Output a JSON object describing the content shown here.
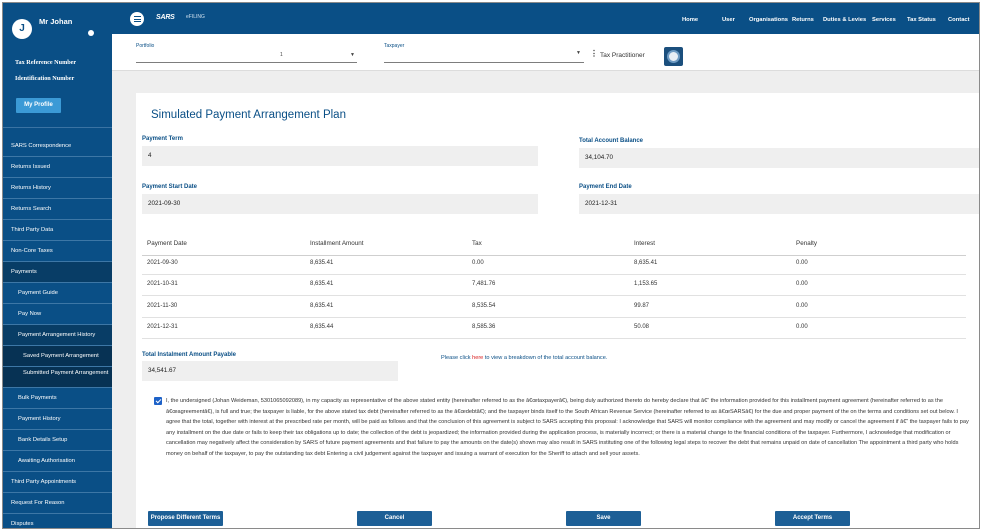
{
  "sidebar": {
    "user_initial": "J",
    "user_name": "Mr Johan",
    "tax_reference_label": "Tax Reference Number",
    "identification_label": "Identification Number",
    "my_profile_label": "My Profile",
    "menu": [
      "SARS Correspondence",
      "Returns Issued",
      "Returns History",
      "Returns Search",
      "Third Party Data",
      "Non-Core Taxes",
      "Payments",
      "Payment Guide",
      "Pay Now",
      "Payment Arrangement History",
      "Saved Payment Arrangement",
      "Submitted Payment Arrangement",
      "Bulk Payments",
      "Payment History",
      "Bank Details Setup",
      "Awaiting Authorisation",
      "Third Party Appointments",
      "Request For Reason",
      "Disputes"
    ]
  },
  "topbar": {
    "brand": "SARS",
    "brand_sub": "eFILING",
    "nav": [
      "Home",
      "User",
      "Organisations",
      "Returns",
      "Duties & Levies",
      "Services",
      "Tax Status",
      "Contact"
    ]
  },
  "selector": {
    "portfolio_label": "Portfolio",
    "portfolio_value": "1",
    "taxpayer_label": "Taxpayer",
    "practitioner_label": "Tax Practitioner"
  },
  "form": {
    "title": "Simulated Payment Arrangement Plan",
    "payment_term_label": "Payment Term",
    "payment_term_value": "4",
    "total_balance_label": "Total Account Balance",
    "total_balance_value": "34,104.70",
    "start_date_label": "Payment Start Date",
    "start_date_value": "2021-09-30",
    "end_date_label": "Payment End Date",
    "end_date_value": "2021-12-31"
  },
  "table": {
    "headers": [
      "Payment Date",
      "Installment Amount",
      "Tax",
      "Interest",
      "Penalty"
    ],
    "rows": [
      [
        "2021-09-30",
        "8,635.41",
        "0.00",
        "8,635.41",
        "0.00"
      ],
      [
        "2021-10-31",
        "8,635.41",
        "7,481.76",
        "1,153.65",
        "0.00"
      ],
      [
        "2021-11-30",
        "8,635.41",
        "8,535.54",
        "99.87",
        "0.00"
      ],
      [
        "2021-12-31",
        "8,635.44",
        "8,585.36",
        "50.08",
        "0.00"
      ]
    ]
  },
  "total_payable": {
    "label": "Total Instalment Amount Payable",
    "value": "34,541.67"
  },
  "note": {
    "before": "Please click ",
    "link": "here",
    "after": " to view a breakdown of the total account balance."
  },
  "declaration": {
    "checked": true,
    "text": "I, the undersigned (Johan Weideman, 5301065092089), in my capacity as representative of the above stated entity (hereinafter referred to as the â€œtaxpayerâ€), being duly authorized thereto do hereby declare that â€“ the information provided for this installment payment agreement (hereinafter referred to as the â€œagreementâ€), is full and true; the taxpayer is liable, for the above stated tax debt (hereinafter referred to as the â€œdebtâ€); and the taxpayer binds itself to the South African Revenue Service (hereinafter referred to as â€œSARSâ€) for the due and proper payment of the on the terms and conditions set out below. I agree that the total, together with interest at the prescribed rate per month, will be paid as follows and that the conclusion of this agreement is subject to SARS accepting this proposal: I acknowledge that SARS will monitor compliance with the agreement and may modify or cancel the agreement if â€“ the taxpayer fails to pay any installment on the due date or fails to keep their tax obligations up to date; the collection of the debt is jeopardized; the information provided during the application process, is materially incorrect; or there is a material change to the financial conditions of the taxpayer. Furthermore, I acknowledge that modification or cancellation may negatively affect the consideration by SARS of future payment agreements and that failure to pay the amounts on the date(s) shown may also result in SARS instituting one of the following legal steps to recover the debt that remains unpaid on date of cancellation The appointment a third party who holds money on behalf of the taxpayer, to pay the outstanding tax debt Entering a civil judgement against the taxpayer and issuing a warrant of execution for the Sheriff to attach and sell your assets."
  },
  "buttons": {
    "propose": "Propose Different Terms",
    "cancel": "Cancel",
    "save": "Save",
    "accept": "Accept Terms"
  }
}
